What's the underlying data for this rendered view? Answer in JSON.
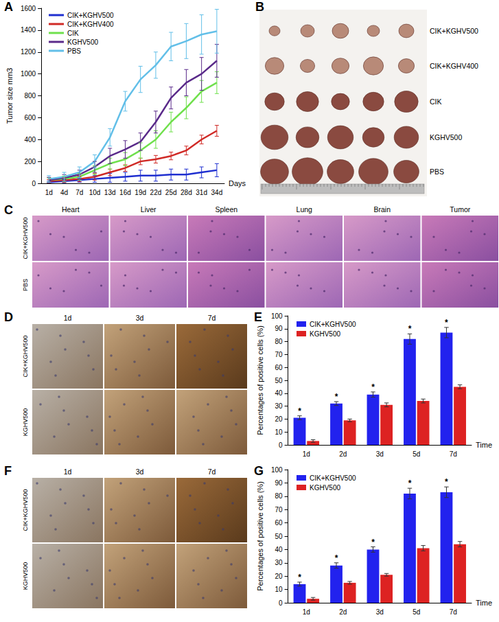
{
  "chart_data": [
    {
      "panel": "A",
      "type": "line",
      "y_label": "Tumor size mm3",
      "x_label": "Days",
      "categories": [
        "1d",
        "4d",
        "7d",
        "10d",
        "13d",
        "16d",
        "19d",
        "22d",
        "25d",
        "28d",
        "31d",
        "34d"
      ],
      "ylim": [
        0,
        1600
      ],
      "yticks": [
        0,
        200,
        400,
        600,
        800,
        1000,
        1200,
        1400,
        1600
      ],
      "grid": false,
      "legend": "top-left",
      "series": [
        {
          "name": "CIK+KGHV500",
          "color": "#1f2fd0",
          "values": [
            10,
            20,
            30,
            40,
            50,
            60,
            70,
            70,
            80,
            80,
            100,
            120
          ],
          "errors": [
            10,
            15,
            20,
            30,
            40,
            40,
            50,
            50,
            50,
            50,
            50,
            60
          ]
        },
        {
          "name": "CIK+KGHV400",
          "color": "#d02a26",
          "values": [
            20,
            30,
            40,
            60,
            100,
            140,
            200,
            220,
            250,
            300,
            400,
            480
          ],
          "errors": [
            15,
            20,
            25,
            30,
            30,
            30,
            30,
            35,
            35,
            40,
            40,
            50
          ]
        },
        {
          "name": "CIK",
          "color": "#6fe04c",
          "values": [
            30,
            40,
            60,
            120,
            180,
            220,
            300,
            400,
            560,
            690,
            840,
            920
          ],
          "errors": [
            20,
            25,
            30,
            40,
            50,
            60,
            70,
            80,
            90,
            100,
            100,
            100
          ]
        },
        {
          "name": "KGHV500",
          "color": "#5a2a8a",
          "values": [
            30,
            50,
            80,
            150,
            250,
            310,
            380,
            560,
            780,
            920,
            1000,
            1120
          ],
          "errors": [
            25,
            30,
            40,
            50,
            70,
            80,
            80,
            100,
            100,
            120,
            150,
            150
          ]
        },
        {
          "name": "PBS",
          "color": "#62bfe8",
          "values": [
            40,
            60,
            100,
            200,
            420,
            750,
            950,
            1080,
            1250,
            1300,
            1360,
            1390
          ],
          "errors": [
            30,
            40,
            50,
            60,
            80,
            90,
            120,
            120,
            130,
            160,
            180,
            200
          ]
        }
      ]
    },
    {
      "panel": "E",
      "type": "bar",
      "y_label": "Percentages of positive cells (%)",
      "x_label": "Time",
      "categories": [
        "1d",
        "2d",
        "3d",
        "5d",
        "7d"
      ],
      "ylim": [
        0,
        100
      ],
      "yticks": [
        0,
        10,
        20,
        30,
        40,
        50,
        60,
        70,
        80,
        90,
        100
      ],
      "grid": false,
      "legend": "top-left",
      "series": [
        {
          "name": "CIK+KGHV500",
          "color": "#2222ee",
          "values": [
            21,
            32,
            39,
            82,
            87
          ],
          "errors": [
            1.5,
            1.5,
            2,
            4,
            4
          ],
          "annotations": [
            "*",
            "*",
            "*",
            "*",
            "*"
          ]
        },
        {
          "name": "KGHV500",
          "color": "#dd2222",
          "values": [
            3,
            19,
            31,
            34,
            45
          ],
          "errors": [
            1,
            1,
            1.5,
            1.5,
            1.5
          ]
        }
      ]
    },
    {
      "panel": "G",
      "type": "bar",
      "y_label": "Percentages of positive cells (%)",
      "x_label": "Time",
      "categories": [
        "1d",
        "2d",
        "3d",
        "5d",
        "7d"
      ],
      "ylim": [
        0,
        100
      ],
      "yticks": [
        0,
        10,
        20,
        30,
        40,
        50,
        60,
        70,
        80,
        90,
        100
      ],
      "grid": false,
      "legend": "top-left",
      "series": [
        {
          "name": "CIK+KGHV500",
          "color": "#2222ee",
          "values": [
            14,
            28,
            40,
            82,
            83
          ],
          "errors": [
            1.5,
            2,
            2,
            4,
            4
          ],
          "annotations": [
            "*",
            "*",
            "*",
            "*",
            "*"
          ]
        },
        {
          "name": "KGHV500",
          "color": "#dd2222",
          "values": [
            3,
            15,
            21,
            41,
            44
          ],
          "errors": [
            1,
            1,
            1,
            2,
            2
          ]
        }
      ]
    }
  ],
  "figures": [
    {
      "panel": "B",
      "rows": [
        "CIK+KGHV500",
        "CIK+KGHV400",
        "CIK",
        "KGHV500",
        "PBS"
      ]
    },
    {
      "panel": "C",
      "columns": [
        "Heart",
        "Liver",
        "Spleen",
        "Lung",
        "Brain",
        "Tumor"
      ],
      "rows": [
        "CIK+KGHV500",
        "PBS"
      ]
    },
    {
      "panel": "D",
      "columns": [
        "1d",
        "3d",
        "7d"
      ],
      "rows": [
        "CIK+KGHV500",
        "KGHV500"
      ]
    },
    {
      "panel": "F",
      "columns": [
        "1d",
        "3d",
        "7d"
      ],
      "rows": [
        "CIK+KGHV500",
        "KGHV500"
      ]
    }
  ]
}
